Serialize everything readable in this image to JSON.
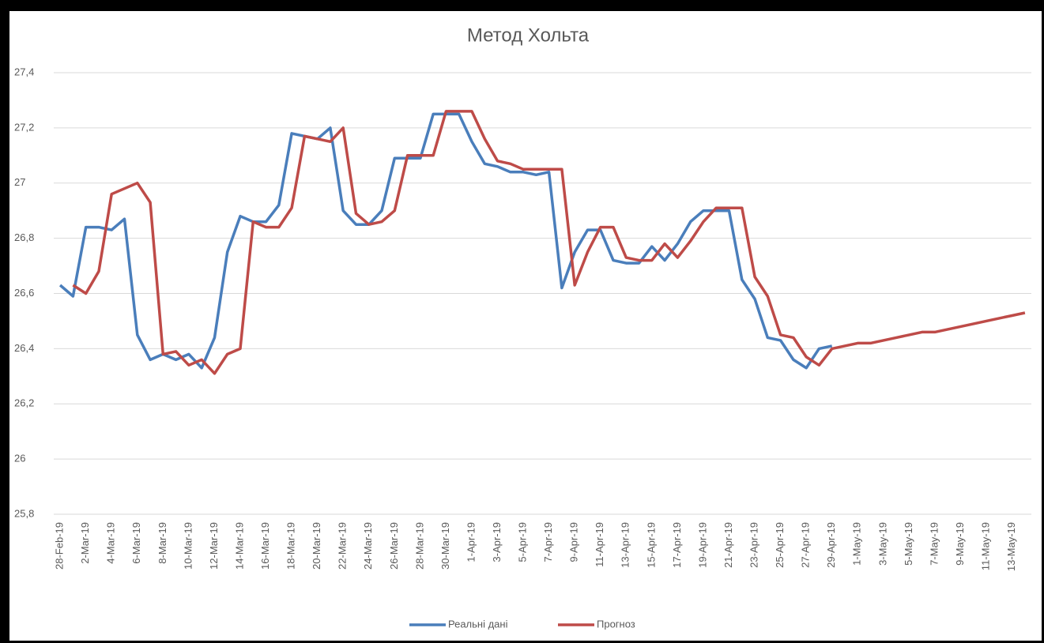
{
  "chart_data": {
    "type": "line",
    "title": "Метод Хольта",
    "categories": [
      "28-Feb-19",
      null,
      "2-Mar-19",
      null,
      "4-Mar-19",
      null,
      "6-Mar-19",
      null,
      "8-Mar-19",
      null,
      "10-Mar-19",
      null,
      "12-Mar-19",
      null,
      "14-Mar-19",
      null,
      "16-Mar-19",
      null,
      "18-Mar-19",
      null,
      "20-Mar-19",
      null,
      "22-Mar-19",
      null,
      "24-Mar-19",
      null,
      "26-Mar-19",
      null,
      "28-Mar-19",
      null,
      "30-Mar-19",
      null,
      "1-Apr-19",
      null,
      "3-Apr-19",
      null,
      "5-Apr-19",
      null,
      "7-Apr-19",
      null,
      "9-Apr-19",
      null,
      "11-Apr-19",
      null,
      "13-Apr-19",
      null,
      "15-Apr-19",
      null,
      "17-Apr-19",
      null,
      "19-Apr-19",
      null,
      "21-Apr-19",
      null,
      "23-Apr-19",
      null,
      "25-Apr-19",
      null,
      "27-Apr-19",
      null,
      "29-Apr-19",
      null,
      "1-May-19",
      null,
      "3-May-19",
      null,
      "5-May-19",
      null,
      "7-May-19",
      null,
      "9-May-19",
      null,
      "11-May-19",
      null,
      "13-May-19",
      null
    ],
    "series": [
      {
        "name": "Реальні дані",
        "color": "#4a7ebb",
        "values": [
          26.63,
          26.59,
          26.84,
          26.84,
          26.83,
          26.87,
          26.45,
          26.36,
          26.38,
          26.36,
          26.38,
          26.33,
          26.44,
          26.75,
          26.88,
          26.86,
          26.86,
          26.92,
          27.18,
          27.17,
          27.16,
          27.2,
          26.9,
          26.85,
          26.85,
          26.9,
          27.09,
          27.09,
          27.09,
          27.25,
          27.25,
          27.25,
          27.15,
          27.07,
          27.06,
          27.04,
          27.04,
          27.03,
          27.04,
          26.62,
          26.75,
          26.83,
          26.83,
          26.72,
          26.71,
          26.71,
          26.77,
          26.72,
          26.78,
          26.86,
          26.9,
          26.9,
          26.9,
          26.65,
          26.58,
          26.44,
          26.43,
          26.36,
          26.33,
          26.4,
          26.41,
          null,
          null,
          null,
          null,
          null,
          null,
          null,
          null,
          null,
          null,
          null,
          null,
          null,
          null,
          null
        ]
      },
      {
        "name": "Прогноз",
        "color": "#be4b48",
        "values": [
          null,
          26.63,
          26.6,
          26.68,
          26.96,
          26.98,
          27.0,
          26.93,
          26.38,
          26.39,
          26.34,
          26.36,
          26.31,
          26.38,
          26.4,
          26.86,
          26.84,
          26.84,
          26.91,
          27.17,
          27.16,
          27.15,
          27.2,
          26.89,
          26.85,
          26.86,
          26.9,
          27.1,
          27.1,
          27.1,
          27.26,
          27.26,
          27.26,
          27.16,
          27.08,
          27.07,
          27.05,
          27.05,
          27.05,
          27.05,
          26.63,
          26.75,
          26.84,
          26.84,
          26.73,
          26.72,
          26.72,
          26.78,
          26.73,
          26.79,
          26.86,
          26.91,
          26.91,
          26.91,
          26.66,
          26.59,
          26.45,
          26.44,
          26.37,
          26.34,
          26.4,
          26.41,
          26.42,
          26.42,
          26.43,
          26.44,
          26.45,
          26.46,
          26.46,
          26.47,
          26.48,
          26.49,
          26.5,
          26.51,
          26.52,
          26.53
        ]
      }
    ],
    "ylim": [
      25.8,
      27.4
    ],
    "yticks": [
      {
        "value": 25.8,
        "label": "25,8"
      },
      26,
      {
        "value": 26.2,
        "label": "26,2"
      },
      {
        "value": 26.4,
        "label": "26,4"
      },
      {
        "value": 26.6,
        "label": "26,6"
      },
      {
        "value": 26.8,
        "label": "26,8"
      },
      27,
      {
        "value": 27.2,
        "label": "27,2"
      },
      {
        "value": 27.4,
        "label": "27,4"
      }
    ],
    "grid": true,
    "legend": "bottom"
  }
}
